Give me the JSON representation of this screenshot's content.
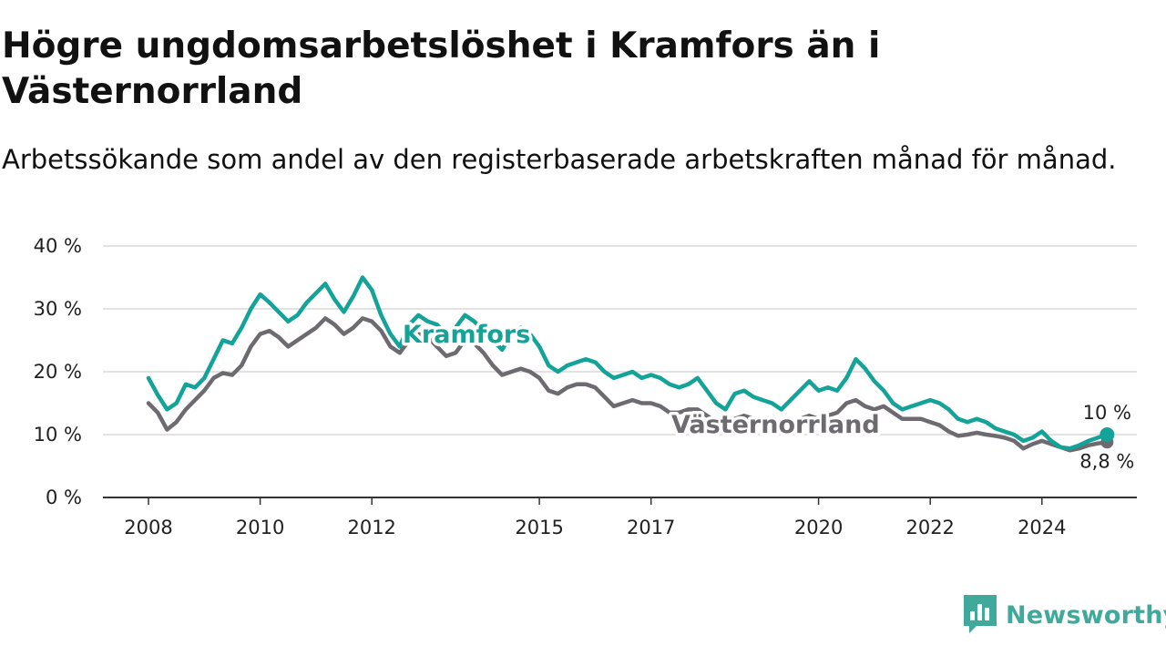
{
  "header": {
    "title": "Högre ungdomsarbetslöshet i Kramfors än i Västernorrland",
    "subtitle": "Arbetssökande som andel av den registerbaserade arbetskraften månad för månad."
  },
  "brand": {
    "name": "Newsworthy",
    "icon": "newsworthy-logo-icon",
    "color": "#40a99c"
  },
  "chart_data": {
    "type": "line",
    "title": "Högre ungdomsarbetslöshet i Kramfors än i Västernorrland",
    "subtitle": "Arbetssökande som andel av den registerbaserade arbetskraften månad för månad.",
    "xlabel": "",
    "ylabel": "",
    "x_ticks": [
      "2008",
      "2010",
      "2012",
      "2015",
      "2017",
      "2020",
      "2022",
      "2024"
    ],
    "y_ticks": [
      "0 %",
      "10 %",
      "20 %",
      "30 %",
      "40 %"
    ],
    "ylim": [
      0,
      40
    ],
    "xlim": [
      "2007-12",
      "2025-11"
    ],
    "grid": true,
    "legend": "inline labels",
    "series": [
      {
        "name": "Kramfors",
        "color": "#13a398",
        "end_label": "10 %",
        "points": [
          [
            "2008-01",
            19.0
          ],
          [
            "2008-03",
            16.3
          ],
          [
            "2008-05",
            14.0
          ],
          [
            "2008-07",
            15.0
          ],
          [
            "2008-09",
            18.0
          ],
          [
            "2008-11",
            17.5
          ],
          [
            "2009-01",
            19.0
          ],
          [
            "2009-03",
            22.0
          ],
          [
            "2009-05",
            25.0
          ],
          [
            "2009-07",
            24.5
          ],
          [
            "2009-09",
            27.0
          ],
          [
            "2009-11",
            30.0
          ],
          [
            "2010-01",
            32.3
          ],
          [
            "2010-03",
            31.0
          ],
          [
            "2010-05",
            29.5
          ],
          [
            "2010-07",
            28.0
          ],
          [
            "2010-09",
            29.0
          ],
          [
            "2010-11",
            31.0
          ],
          [
            "2011-01",
            32.5
          ],
          [
            "2011-03",
            34.0
          ],
          [
            "2011-05",
            31.5
          ],
          [
            "2011-07",
            29.5
          ],
          [
            "2011-09",
            32.0
          ],
          [
            "2011-11",
            35.0
          ],
          [
            "2012-01",
            33.0
          ],
          [
            "2012-03",
            29.0
          ],
          [
            "2012-05",
            26.0
          ],
          [
            "2012-07",
            24.0
          ],
          [
            "2012-09",
            27.5
          ],
          [
            "2012-11",
            29.0
          ],
          [
            "2013-01",
            28.0
          ],
          [
            "2013-03",
            27.5
          ],
          [
            "2013-05",
            26.0
          ],
          [
            "2013-07",
            27.0
          ],
          [
            "2013-09",
            29.0
          ],
          [
            "2013-11",
            28.0
          ],
          [
            "2014-01",
            26.5
          ],
          [
            "2014-03",
            25.0
          ],
          [
            "2014-05",
            23.5
          ],
          [
            "2014-07",
            26.0
          ],
          [
            "2014-09",
            27.0
          ],
          [
            "2014-11",
            26.0
          ],
          [
            "2015-01",
            24.0
          ],
          [
            "2015-03",
            21.0
          ],
          [
            "2015-05",
            20.0
          ],
          [
            "2015-07",
            21.0
          ],
          [
            "2015-09",
            21.5
          ],
          [
            "2015-11",
            22.0
          ],
          [
            "2016-01",
            21.5
          ],
          [
            "2016-03",
            20.0
          ],
          [
            "2016-05",
            19.0
          ],
          [
            "2016-07",
            19.5
          ],
          [
            "2016-09",
            20.0
          ],
          [
            "2016-11",
            19.0
          ],
          [
            "2017-01",
            19.5
          ],
          [
            "2017-03",
            19.0
          ],
          [
            "2017-05",
            18.0
          ],
          [
            "2017-07",
            17.5
          ],
          [
            "2017-09",
            18.0
          ],
          [
            "2017-11",
            19.0
          ],
          [
            "2018-01",
            17.0
          ],
          [
            "2018-03",
            15.0
          ],
          [
            "2018-05",
            14.0
          ],
          [
            "2018-07",
            16.5
          ],
          [
            "2018-09",
            17.0
          ],
          [
            "2018-11",
            16.0
          ],
          [
            "2019-01",
            15.5
          ],
          [
            "2019-03",
            15.0
          ],
          [
            "2019-05",
            14.0
          ],
          [
            "2019-07",
            15.5
          ],
          [
            "2019-09",
            17.0
          ],
          [
            "2019-11",
            18.5
          ],
          [
            "2020-01",
            17.0
          ],
          [
            "2020-03",
            17.5
          ],
          [
            "2020-05",
            17.0
          ],
          [
            "2020-07",
            19.0
          ],
          [
            "2020-09",
            22.0
          ],
          [
            "2020-11",
            20.5
          ],
          [
            "2021-01",
            18.5
          ],
          [
            "2021-03",
            17.0
          ],
          [
            "2021-05",
            15.0
          ],
          [
            "2021-07",
            14.0
          ],
          [
            "2021-09",
            14.5
          ],
          [
            "2021-11",
            15.0
          ],
          [
            "2022-01",
            15.5
          ],
          [
            "2022-03",
            15.0
          ],
          [
            "2022-05",
            14.0
          ],
          [
            "2022-07",
            12.5
          ],
          [
            "2022-09",
            12.0
          ],
          [
            "2022-11",
            12.5
          ],
          [
            "2023-01",
            12.0
          ],
          [
            "2023-03",
            11.0
          ],
          [
            "2023-05",
            10.5
          ],
          [
            "2023-07",
            10.0
          ],
          [
            "2023-09",
            9.0
          ],
          [
            "2023-11",
            9.5
          ],
          [
            "2024-01",
            10.5
          ],
          [
            "2024-03",
            9.0
          ],
          [
            "2024-05",
            8.0
          ],
          [
            "2024-07",
            7.8
          ],
          [
            "2024-09",
            8.3
          ],
          [
            "2024-11",
            9.0
          ],
          [
            "2025-01",
            9.5
          ],
          [
            "2025-03",
            10.0
          ]
        ]
      },
      {
        "name": "Västernorrland",
        "color": "#6d6a70",
        "end_label": "8,8 %",
        "points": [
          [
            "2008-01",
            15.0
          ],
          [
            "2008-03",
            13.5
          ],
          [
            "2008-05",
            10.8
          ],
          [
            "2008-07",
            12.0
          ],
          [
            "2008-09",
            14.0
          ],
          [
            "2008-11",
            15.5
          ],
          [
            "2009-01",
            17.0
          ],
          [
            "2009-03",
            19.0
          ],
          [
            "2009-05",
            19.8
          ],
          [
            "2009-07",
            19.5
          ],
          [
            "2009-09",
            21.0
          ],
          [
            "2009-11",
            24.0
          ],
          [
            "2010-01",
            26.0
          ],
          [
            "2010-03",
            26.5
          ],
          [
            "2010-05",
            25.5
          ],
          [
            "2010-07",
            24.0
          ],
          [
            "2010-09",
            25.0
          ],
          [
            "2010-11",
            26.0
          ],
          [
            "2011-01",
            27.0
          ],
          [
            "2011-03",
            28.5
          ],
          [
            "2011-05",
            27.5
          ],
          [
            "2011-07",
            26.0
          ],
          [
            "2011-09",
            27.0
          ],
          [
            "2011-11",
            28.5
          ],
          [
            "2012-01",
            28.0
          ],
          [
            "2012-03",
            26.5
          ],
          [
            "2012-05",
            24.0
          ],
          [
            "2012-07",
            23.0
          ],
          [
            "2012-09",
            25.0
          ],
          [
            "2012-11",
            26.0
          ],
          [
            "2013-01",
            25.5
          ],
          [
            "2013-03",
            24.0
          ],
          [
            "2013-05",
            22.5
          ],
          [
            "2013-07",
            23.0
          ],
          [
            "2013-09",
            25.0
          ],
          [
            "2013-11",
            24.5
          ],
          [
            "2014-01",
            23.0
          ],
          [
            "2014-03",
            21.0
          ],
          [
            "2014-05",
            19.5
          ],
          [
            "2014-07",
            20.0
          ],
          [
            "2014-09",
            20.5
          ],
          [
            "2014-11",
            20.0
          ],
          [
            "2015-01",
            19.0
          ],
          [
            "2015-03",
            17.0
          ],
          [
            "2015-05",
            16.5
          ],
          [
            "2015-07",
            17.5
          ],
          [
            "2015-09",
            18.0
          ],
          [
            "2015-11",
            18.0
          ],
          [
            "2016-01",
            17.5
          ],
          [
            "2016-03",
            16.0
          ],
          [
            "2016-05",
            14.5
          ],
          [
            "2016-07",
            15.0
          ],
          [
            "2016-09",
            15.5
          ],
          [
            "2016-11",
            15.0
          ],
          [
            "2017-01",
            15.0
          ],
          [
            "2017-03",
            14.5
          ],
          [
            "2017-05",
            13.5
          ],
          [
            "2017-07",
            13.5
          ],
          [
            "2017-09",
            14.0
          ],
          [
            "2017-11",
            14.0
          ],
          [
            "2018-01",
            13.0
          ],
          [
            "2018-03",
            12.0
          ],
          [
            "2018-05",
            11.5
          ],
          [
            "2018-07",
            12.5
          ],
          [
            "2018-09",
            13.0
          ],
          [
            "2018-11",
            12.5
          ],
          [
            "2019-01",
            12.0
          ],
          [
            "2019-03",
            11.5
          ],
          [
            "2019-05",
            11.0
          ],
          [
            "2019-07",
            12.0
          ],
          [
            "2019-09",
            12.5
          ],
          [
            "2019-11",
            13.0
          ],
          [
            "2020-01",
            12.5
          ],
          [
            "2020-03",
            13.0
          ],
          [
            "2020-05",
            13.5
          ],
          [
            "2020-07",
            15.0
          ],
          [
            "2020-09",
            15.5
          ],
          [
            "2020-11",
            14.5
          ],
          [
            "2021-01",
            14.0
          ],
          [
            "2021-03",
            14.5
          ],
          [
            "2021-05",
            13.5
          ],
          [
            "2021-07",
            12.5
          ],
          [
            "2021-09",
            12.5
          ],
          [
            "2021-11",
            12.5
          ],
          [
            "2022-01",
            12.0
          ],
          [
            "2022-03",
            11.5
          ],
          [
            "2022-05",
            10.5
          ],
          [
            "2022-07",
            9.8
          ],
          [
            "2022-09",
            10.0
          ],
          [
            "2022-11",
            10.3
          ],
          [
            "2023-01",
            10.0
          ],
          [
            "2023-03",
            9.8
          ],
          [
            "2023-05",
            9.5
          ],
          [
            "2023-07",
            9.0
          ],
          [
            "2023-09",
            7.8
          ],
          [
            "2023-11",
            8.5
          ],
          [
            "2024-01",
            9.0
          ],
          [
            "2024-03",
            8.5
          ],
          [
            "2024-05",
            8.0
          ],
          [
            "2024-07",
            7.5
          ],
          [
            "2024-09",
            7.8
          ],
          [
            "2024-11",
            8.3
          ],
          [
            "2025-01",
            8.6
          ],
          [
            "2025-03",
            8.8
          ]
        ]
      }
    ]
  }
}
